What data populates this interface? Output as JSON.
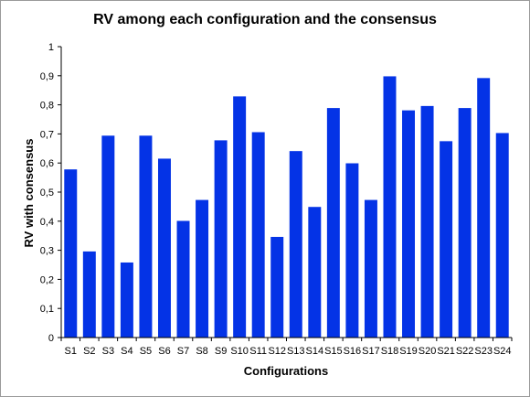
{
  "chart_data": {
    "type": "bar",
    "title": "RV among each configuration and the consensus",
    "xlabel": "Configurations",
    "ylabel": "RV with consensus",
    "ylim": [
      0,
      1
    ],
    "yticks": [
      0,
      0.1,
      0.2,
      0.3,
      0.4,
      0.5,
      0.6,
      0.7,
      0.8,
      0.9,
      1
    ],
    "ytick_labels": [
      "0",
      "0,1",
      "0,2",
      "0,3",
      "0,4",
      "0,5",
      "0,6",
      "0,7",
      "0,8",
      "0,9",
      "1"
    ],
    "categories": [
      "S1",
      "S2",
      "S3",
      "S4",
      "S5",
      "S6",
      "S7",
      "S8",
      "S9",
      "S10",
      "S11",
      "S12",
      "S13",
      "S14",
      "S15",
      "S16",
      "S17",
      "S18",
      "S19",
      "S20",
      "S21",
      "S22",
      "S23",
      "S24"
    ],
    "values": [
      0.578,
      0.296,
      0.694,
      0.258,
      0.694,
      0.615,
      0.401,
      0.473,
      0.678,
      0.829,
      0.706,
      0.346,
      0.641,
      0.449,
      0.789,
      0.599,
      0.473,
      0.898,
      0.781,
      0.796,
      0.675,
      0.789,
      0.892,
      0.703
    ],
    "bar_color": "#0433e6",
    "grid": false,
    "legend": "none"
  }
}
